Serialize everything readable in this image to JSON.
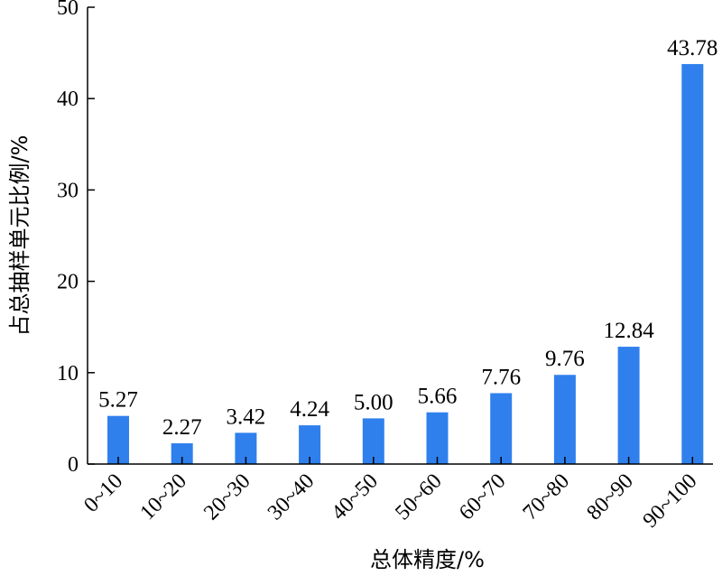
{
  "chart_data": {
    "type": "bar",
    "categories": [
      "0~10",
      "10~20",
      "20~30",
      "30~40",
      "40~50",
      "50~60",
      "60~70",
      "70~80",
      "80~90",
      "90~100"
    ],
    "values": [
      5.27,
      2.27,
      3.42,
      4.24,
      5.0,
      5.66,
      7.76,
      9.76,
      12.84,
      43.78
    ],
    "data_labels": [
      "5.27",
      "2.27",
      "3.42",
      "4.24",
      "5.00",
      "5.66",
      "7.76",
      "9.76",
      "12.84",
      "43.78"
    ],
    "xlabel": "总体精度/%",
    "ylabel": "占总抽样单元比例/%",
    "ylim": [
      0,
      50
    ],
    "yticks": [
      0,
      10,
      20,
      30,
      40,
      50
    ],
    "bar_color": "#2f80ed",
    "grid": false
  }
}
